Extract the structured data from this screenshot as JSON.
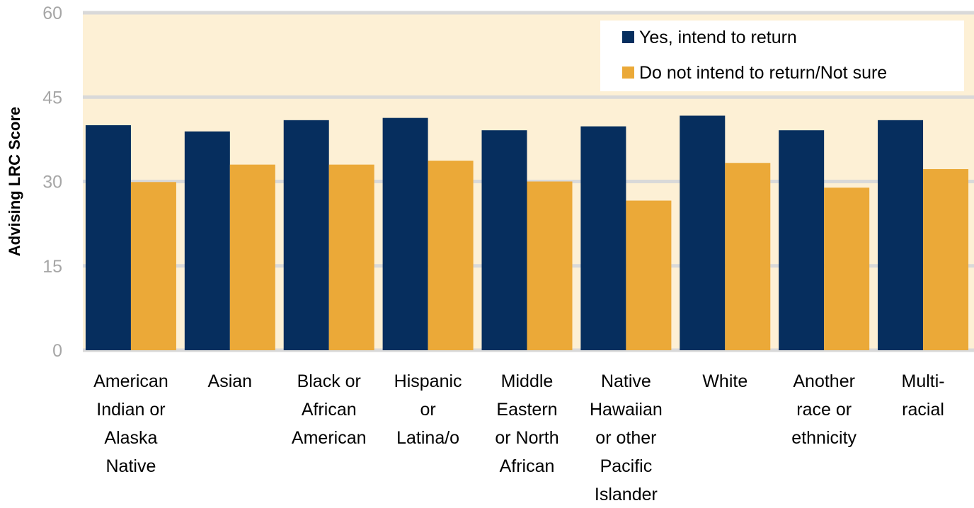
{
  "chart_data": {
    "type": "bar",
    "categories": [
      [
        "American",
        "Indian or",
        "Alaska",
        "Native"
      ],
      [
        "Asian"
      ],
      [
        "Black or",
        "African",
        "American"
      ],
      [
        "Hispanic",
        "or",
        "Latina/o"
      ],
      [
        "Middle",
        "Eastern",
        "or North",
        "African"
      ],
      [
        "Native",
        "Hawaiian",
        "or other",
        "Pacific",
        "Islander"
      ],
      [
        "White"
      ],
      [
        "Another",
        "race or",
        "ethnicity"
      ],
      [
        "Multi-",
        "racial"
      ]
    ],
    "series": [
      {
        "name": "Yes, intend to return",
        "color": "#062e5e",
        "values": [
          40.0,
          38.9,
          40.9,
          41.3,
          39.1,
          39.8,
          41.7,
          39.1,
          40.9
        ]
      },
      {
        "name": "Do not intend to return/Not sure",
        "color": "#eba938",
        "values": [
          29.9,
          33.0,
          33.0,
          33.7,
          30.0,
          26.6,
          33.3,
          28.9,
          32.2
        ]
      }
    ],
    "ylabel": "Advising LRC Score",
    "xlabel": "",
    "ylim": [
      0,
      60
    ],
    "yticks": [
      0,
      15,
      30,
      45,
      60
    ],
    "grid": true,
    "legend_position": "top-right",
    "background_band": {
      "from": 45,
      "to": 60,
      "color": "#fdf0d5"
    },
    "plot_background": "#fdf0d5",
    "gridline_color": "#d9d9d9"
  }
}
